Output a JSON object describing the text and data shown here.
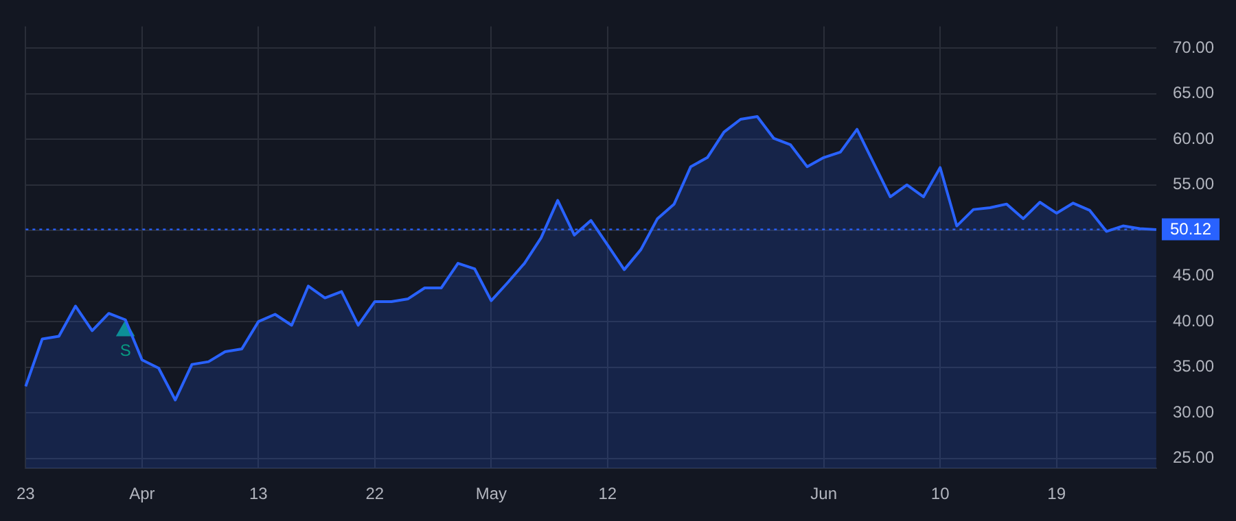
{
  "chart_data": {
    "type": "area",
    "categories": [
      "23",
      null,
      null,
      null,
      null,
      null,
      null,
      "Apr",
      null,
      null,
      null,
      null,
      null,
      null,
      "13",
      null,
      null,
      null,
      null,
      null,
      null,
      "22",
      null,
      null,
      null,
      null,
      null,
      null,
      "May",
      null,
      null,
      null,
      null,
      null,
      null,
      "12",
      null,
      null,
      null,
      null,
      null,
      null,
      null,
      null,
      null,
      null,
      null,
      null,
      "Jun",
      null,
      null,
      null,
      null,
      null,
      null,
      "10",
      null,
      null,
      null,
      null,
      null,
      null,
      "19",
      null,
      null,
      null,
      null,
      null,
      null
    ],
    "series": [
      {
        "color": "#2962ff",
        "values": [
          32.9,
          38.1,
          38.4,
          41.7,
          39.0,
          40.9,
          40.2,
          35.8,
          34.9,
          31.4,
          35.3,
          35.6,
          36.7,
          37.0,
          40.0,
          40.8,
          39.6,
          43.9,
          42.6,
          43.3,
          39.6,
          42.2,
          42.2,
          42.5,
          43.7,
          43.7,
          46.4,
          45.8,
          42.3,
          44.3,
          46.4,
          49.2,
          53.3,
          49.5,
          51.1,
          48.4,
          45.7,
          47.9,
          51.3,
          52.9,
          57.0,
          58.0,
          60.8,
          62.2,
          62.5,
          60.1,
          59.4,
          57.0,
          58.0,
          58.6,
          61.1,
          57.4,
          53.7,
          55.0,
          53.7,
          56.9,
          50.5,
          52.3,
          52.5,
          52.9,
          51.3,
          53.1,
          51.9,
          53.0,
          52.2,
          49.9,
          50.5,
          50.2,
          50.1
        ]
      },
      {
        "type": "scatter",
        "marker": "triangle",
        "color": "#089981",
        "values": [
          null,
          null,
          null,
          null,
          null,
          null,
          39.0,
          null,
          null,
          null,
          null,
          null,
          null,
          null,
          null,
          null,
          null,
          null,
          null,
          null,
          null,
          null,
          null,
          null,
          null,
          null,
          null,
          null,
          null,
          null,
          null,
          null,
          null,
          null,
          null,
          null,
          null,
          null,
          null,
          null,
          null,
          null,
          null,
          null,
          null,
          null,
          null,
          null,
          null,
          null,
          null,
          null,
          null,
          null,
          null,
          null,
          null,
          null,
          null,
          null,
          null,
          null,
          null,
          null,
          null,
          null,
          null,
          null,
          null
        ]
      }
    ],
    "annotations": [
      "S"
    ],
    "ylim": [
      23.9,
      72.4
    ],
    "yticks": [
      {
        "value": 25,
        "label": "25.00"
      },
      {
        "value": 30,
        "label": "30.00"
      },
      {
        "value": 35,
        "label": "35.00"
      },
      {
        "value": 40,
        "label": "40.00"
      },
      {
        "value": 45,
        "label": "45.00"
      },
      {
        "value": 50,
        "label": null
      },
      {
        "value": 55,
        "label": "55.00"
      },
      {
        "value": 60,
        "label": "60.00"
      },
      {
        "value": 65,
        "label": "65.00"
      },
      {
        "value": 70,
        "label": "70.00"
      }
    ],
    "ref_lines": [
      {
        "axis": "y",
        "value": 50.12,
        "label": "50.12",
        "color": "#2962ff",
        "line_style": "dotted"
      }
    ],
    "grid": true,
    "marker": "none",
    "line_style": "solid",
    "legend": false
  }
}
